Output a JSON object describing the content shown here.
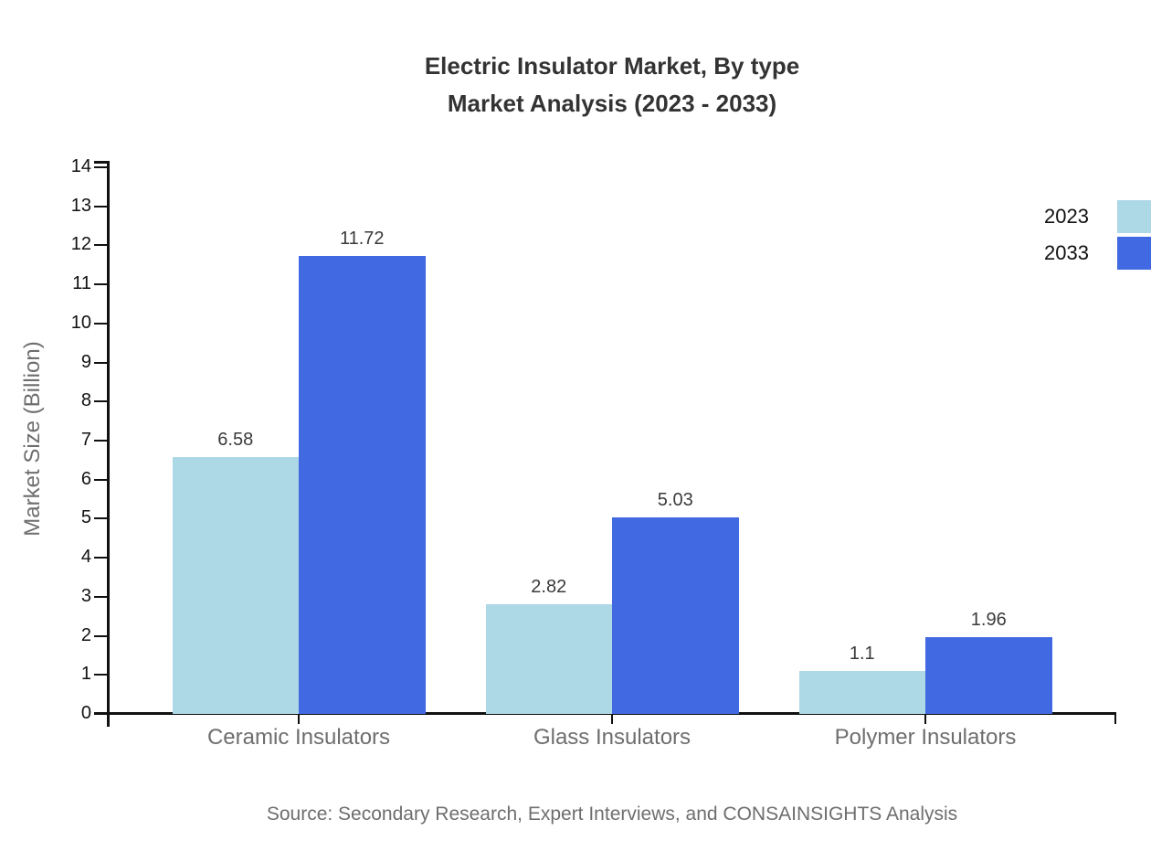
{
  "title": {
    "line1": "Electric Insulator Market, By type",
    "line2": "Market Analysis (2023 - 2033)"
  },
  "chart_data": {
    "type": "bar",
    "categories": [
      "Ceramic Insulators",
      "Glass Insulators",
      "Polymer Insulators"
    ],
    "series": [
      {
        "name": "2023",
        "color": "#ADD8E6",
        "values": [
          6.58,
          2.82,
          1.1
        ]
      },
      {
        "name": "2033",
        "color": "#4169E1",
        "values": [
          11.72,
          5.03,
          1.96
        ]
      }
    ],
    "title": "Electric Insulator Market, By type Market Analysis (2023 - 2033)",
    "xlabel": "",
    "ylabel": "Market Size (Billion)",
    "ylim": [
      0,
      14
    ],
    "ytick_step": 1,
    "grid": false,
    "legend_position": "top-right",
    "value_labels_shown": true
  },
  "legend": {
    "items": [
      {
        "label": "2023",
        "color": "#ADD8E6"
      },
      {
        "label": "2033",
        "color": "#4169E1"
      }
    ]
  },
  "source": {
    "text": "Source: Secondary Research, Expert Interviews, and CONSAINSIGHTS Analysis"
  }
}
